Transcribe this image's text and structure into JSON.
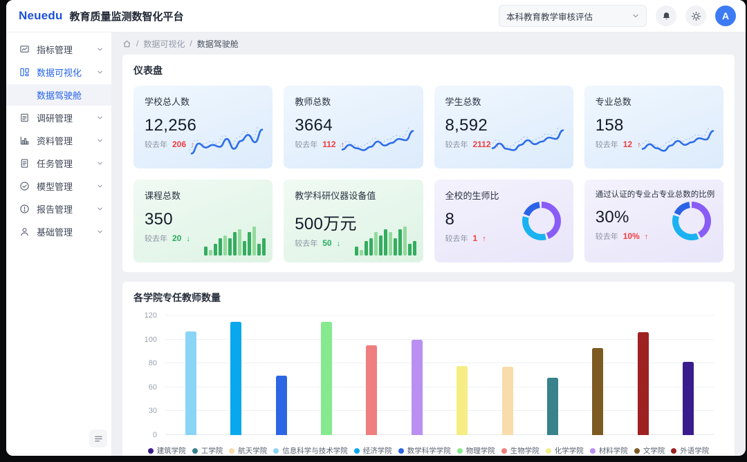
{
  "header": {
    "logo": "Neuedu",
    "title": "教育质量监测数智化平台",
    "project_select": "本科教育教学审核评估",
    "icons": [
      "chevron-down-icon",
      "bell-icon",
      "theme-sun-icon"
    ],
    "avatar": "A",
    "accent_color": "#1d4fd8"
  },
  "sidebar": {
    "items": [
      {
        "label": "指标管理",
        "icon": "board-icon",
        "active": false
      },
      {
        "label": "数据可视化",
        "icon": "data-visual-icon",
        "active": true
      },
      {
        "label": "数据驾驶舱",
        "submenu": true,
        "active": true
      },
      {
        "label": "调研管理",
        "icon": "survey-icon",
        "active": false
      },
      {
        "label": "资料管理",
        "icon": "bar-chart-icon",
        "active": false
      },
      {
        "label": "任务管理",
        "icon": "task-icon",
        "active": false
      },
      {
        "label": "模型管理",
        "icon": "check-circle-icon",
        "active": false
      },
      {
        "label": "报告管理",
        "icon": "report-icon",
        "active": false
      },
      {
        "label": "基础管理",
        "icon": "user-icon",
        "active": false
      }
    ],
    "collapse_icon": "collapse-menu-icon"
  },
  "breadcrumb": {
    "home_icon": "home-icon",
    "items": [
      "数据可视化",
      "数据驾驶舱"
    ]
  },
  "dashboard": {
    "section_title": "仪表盘",
    "compare_label": "较去年",
    "colors": {
      "up": "#f23c3c",
      "down": "#27ae60",
      "line": "#2e6fe8",
      "bar_dark": "#35ad5f",
      "bar_light": "#93da9d"
    },
    "cards": [
      {
        "title": "学校总人数",
        "value": "12,256",
        "delta": "206",
        "direction": "up",
        "viz": "line",
        "theme": "blue",
        "sparkline": [
          14,
          44,
          32,
          40,
          34,
          58,
          28,
          52,
          70,
          48,
          86
        ]
      },
      {
        "title": "教师总数",
        "value": "3664",
        "delta": "112",
        "direction": "up",
        "viz": "line",
        "theme": "blue",
        "sparkline": [
          26,
          40,
          30,
          24,
          34,
          50,
          38,
          46,
          58,
          54,
          82
        ]
      },
      {
        "title": "学生总数",
        "value": "8,592",
        "delta": "2112",
        "direction": "up",
        "viz": "line",
        "theme": "blue",
        "sparkline": [
          30,
          44,
          28,
          24,
          40,
          54,
          42,
          50,
          62,
          58,
          84
        ]
      },
      {
        "title": "专业总数",
        "value": "158",
        "delta": "12",
        "direction": "up",
        "viz": "line",
        "theme": "blue",
        "sparkline": [
          28,
          42,
          30,
          22,
          38,
          52,
          40,
          48,
          60,
          56,
          82
        ]
      },
      {
        "title": "课程总数",
        "value": "350",
        "delta": "20",
        "direction": "down",
        "viz": "bars",
        "theme": "green",
        "sparkline": [
          3,
          2,
          4,
          6,
          7,
          6,
          8,
          9,
          5,
          8,
          10,
          4,
          6
        ]
      },
      {
        "title": "教学科研仪器设备值",
        "value": "500万元",
        "delta": "50",
        "direction": "down",
        "viz": "bars",
        "theme": "green",
        "sparkline": [
          3,
          2,
          5,
          6,
          8,
          7,
          9,
          8,
          6,
          9,
          10,
          4,
          5
        ]
      },
      {
        "title": "全校的生师比",
        "value": "8",
        "delta": "1",
        "direction": "up",
        "viz": "donut",
        "theme": "purple",
        "donut": [
          {
            "color": "#8a5cf6",
            "pct": 44
          },
          {
            "color": "#1ab2f1",
            "pct": 33
          },
          {
            "color": "#2b63e6",
            "pct": 17
          }
        ]
      },
      {
        "title": "通过认证的专业占专业总数的比例",
        "value": "30%",
        "delta": "10%",
        "direction": "up",
        "viz": "donut",
        "theme": "purple",
        "donut": [
          {
            "color": "#8a5cf6",
            "pct": 42
          },
          {
            "color": "#1ab2f1",
            "pct": 36
          },
          {
            "color": "#2b63e6",
            "pct": 16
          }
        ]
      }
    ]
  },
  "chart_data": {
    "type": "bar",
    "title": "各学院专任教师数量",
    "xlabel": "",
    "ylabel": "",
    "y_ticks": [
      0,
      30,
      60,
      80,
      100,
      120
    ],
    "grid": true,
    "legend_position": "bottom",
    "categories": [
      "信息科学与技术学院",
      "经济学院",
      "数学科学学院",
      "物理学院",
      "生物学院",
      "材料学院",
      "化学学院",
      "航天学院",
      "工学院",
      "文学院",
      "外语学院",
      "建筑学院"
    ],
    "series": [
      {
        "name": "专任教师数量",
        "values": [
          107,
          115,
          70,
          115,
          95,
          100,
          78,
          77,
          68,
          93,
          106,
          81
        ]
      }
    ],
    "bar_colors": [
      "#8ad5f6",
      "#09a8ee",
      "#2d66e4",
      "#86e98e",
      "#ef7e7e",
      "#b98ff2",
      "#f6ee85",
      "#f8dcab",
      "#37828b",
      "#7c5a21",
      "#9e2222",
      "#3a1c8c"
    ],
    "legend": [
      {
        "name": "建筑学院",
        "color": "#3a1c8c"
      },
      {
        "name": "工学院",
        "color": "#37828b"
      },
      {
        "name": "航天学院",
        "color": "#f8dcab"
      },
      {
        "name": "信息科学与技术学院",
        "color": "#8ad5f6"
      },
      {
        "name": "经济学院",
        "color": "#09a8ee"
      },
      {
        "name": "数学科学学院",
        "color": "#2d66e4"
      },
      {
        "name": "物理学院",
        "color": "#86e98e"
      },
      {
        "name": "生物学院",
        "color": "#ef7e7e"
      },
      {
        "name": "化学学院",
        "color": "#f6ee85"
      },
      {
        "name": "材料学院",
        "color": "#b98ff2"
      },
      {
        "name": "文学院",
        "color": "#7c5a21"
      },
      {
        "name": "外语学院",
        "color": "#9e2222"
      }
    ]
  }
}
